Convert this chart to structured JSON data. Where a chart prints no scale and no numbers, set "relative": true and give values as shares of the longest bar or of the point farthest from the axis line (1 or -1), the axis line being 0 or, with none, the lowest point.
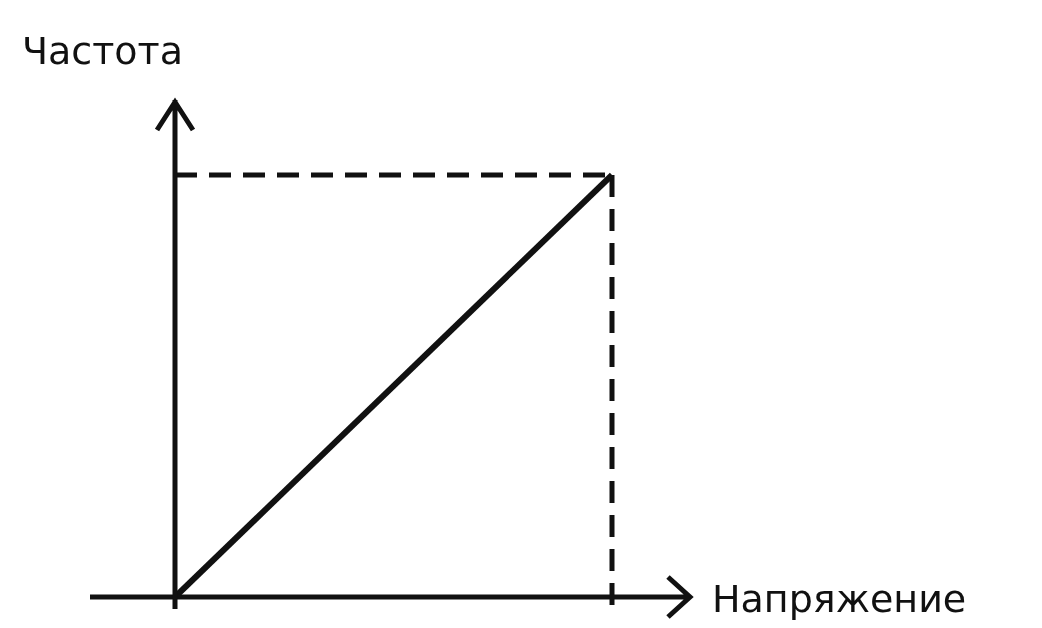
{
  "chart_data": {
    "type": "line",
    "xlabel": "Напряжение",
    "ylabel": "Частота",
    "relative": true,
    "categories": [
      null,
      null
    ],
    "series": [
      {
        "color": "#111111",
        "values": [
          0,
          1
        ]
      }
    ],
    "ref_lines": [
      {
        "axis": "y",
        "value": 1,
        "line_style": "dashed",
        "color": "#111111"
      }
    ]
  }
}
